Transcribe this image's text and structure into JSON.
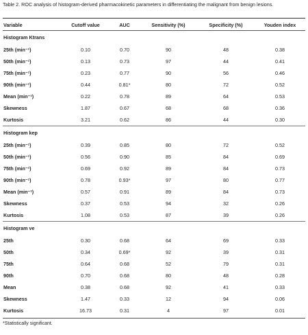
{
  "caption": "Table 2. ROC analysis of histogram-derived pharmacokinetic parameters in differentiating the malignant from benign lesions.",
  "columns": [
    "Variable",
    "Cutoff value",
    "AUC",
    "Sensitivity (%)",
    "Specificity (%)",
    "Youden index"
  ],
  "sections": [
    {
      "title": "Histogram Ktrans",
      "rows": [
        [
          "25th (min⁻¹)",
          "0.10",
          "0.70",
          "90",
          "48",
          "0.38"
        ],
        [
          "50th (min⁻¹)",
          "0.13",
          "0.73",
          "97",
          "44",
          "0.41"
        ],
        [
          "75th (min⁻¹)",
          "0.23",
          "0.77",
          "90",
          "56",
          "0.46"
        ],
        [
          "90th (min⁻¹)",
          "0.44",
          "0.81*",
          "80",
          "72",
          "0.52"
        ],
        [
          "Mean (min⁻¹)",
          "0.22",
          "0.78",
          "89",
          "64",
          "0.53"
        ],
        [
          "Skewness",
          "1.87",
          "0.67",
          "68",
          "68",
          "0.36"
        ],
        [
          "Kurtosis",
          "3.21",
          "0.62",
          "86",
          "44",
          "0.30"
        ]
      ]
    },
    {
      "title": "Histogram kep",
      "rows": [
        [
          "25th (min⁻¹)",
          "0.39",
          "0.85",
          "80",
          "72",
          "0.52"
        ],
        [
          "50th (min⁻¹)",
          "0.56",
          "0.90",
          "85",
          "84",
          "0.69"
        ],
        [
          "75th (min⁻¹)",
          "0.69",
          "0.92",
          "89",
          "84",
          "0.73"
        ],
        [
          "90th (min⁻¹)",
          "0.78",
          "0.93*",
          "97",
          "80",
          "0.77"
        ],
        [
          "Mean (min⁻¹)",
          "0.57",
          "0.91",
          "89",
          "84",
          "0.73"
        ],
        [
          "Skewness",
          "0.37",
          "0.53",
          "94",
          "32",
          "0.26"
        ],
        [
          "Kurtosis",
          "1.08",
          "0.53",
          "87",
          "39",
          "0.26"
        ]
      ]
    },
    {
      "title": "Histogram ve",
      "rows": [
        [
          "25th",
          "0.30",
          "0.68",
          "64",
          "69",
          "0.33"
        ],
        [
          "50th",
          "0.34",
          "0.69*",
          "92",
          "39",
          "0.31"
        ],
        [
          "75th",
          "0.64",
          "0.68",
          "52",
          "79",
          "0.31"
        ],
        [
          "90th",
          "0.70",
          "0.68",
          "80",
          "48",
          "0.28"
        ],
        [
          "Mean",
          "0.38",
          "0.68",
          "92",
          "41",
          "0.33"
        ],
        [
          "Skewness",
          "1.47",
          "0.33",
          "12",
          "94",
          "0.06"
        ],
        [
          "Kurtosis",
          "16.73",
          "0.31",
          "4",
          "97",
          "0.01"
        ]
      ]
    }
  ],
  "footnote": "*Statistically significant."
}
